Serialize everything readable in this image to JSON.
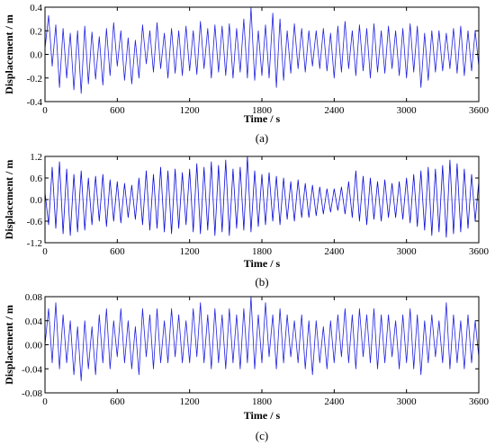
{
  "chart_data": [
    {
      "type": "line",
      "caption": "(a)",
      "xlabel": "Time / s",
      "ylabel": "Displacement / m",
      "xlim": [
        0,
        3600
      ],
      "ylim": [
        -0.4,
        0.4
      ],
      "xticks": [
        0,
        600,
        1200,
        1800,
        2400,
        3000,
        3600
      ],
      "yticks": [
        -0.4,
        -0.2,
        0.0,
        0.2,
        0.4
      ],
      "ytick_labels": [
        "-0.4",
        "-0.2",
        "0.0",
        "0.2",
        "0.4"
      ],
      "color": "#2020e0",
      "series": [
        {
          "x": [
            0,
            30,
            60,
            90,
            120,
            150,
            180,
            210,
            240,
            270,
            300,
            330,
            360,
            390,
            420,
            450,
            480,
            510,
            540,
            570,
            600,
            630,
            660,
            690,
            720,
            750,
            780,
            810,
            840,
            870,
            900,
            930,
            960,
            990,
            1020,
            1050,
            1080,
            1110,
            1140,
            1170,
            1200,
            1230,
            1260,
            1290,
            1320,
            1350,
            1380,
            1410,
            1440,
            1470,
            1500,
            1530,
            1560,
            1590,
            1620,
            1650,
            1680,
            1710,
            1740,
            1770,
            1800,
            1830,
            1860,
            1890,
            1920,
            1950,
            1980,
            2010,
            2040,
            2070,
            2100,
            2130,
            2160,
            2190,
            2220,
            2250,
            2280,
            2310,
            2340,
            2370,
            2400,
            2430,
            2460,
            2490,
            2520,
            2550,
            2580,
            2610,
            2640,
            2670,
            2700,
            2730,
            2760,
            2790,
            2820,
            2850,
            2880,
            2910,
            2940,
            2970,
            3000,
            3030,
            3060,
            3090,
            3120,
            3150,
            3180,
            3210,
            3240,
            3270,
            3300,
            3330,
            3360,
            3390,
            3420,
            3450,
            3480,
            3510,
            3540,
            3570,
            3600
          ],
          "y": [
            0.05,
            0.33,
            -0.1,
            0.25,
            -0.28,
            0.22,
            -0.2,
            0.18,
            -0.3,
            0.2,
            -0.33,
            0.24,
            -0.25,
            0.19,
            -0.21,
            0.15,
            -0.26,
            0.22,
            -0.18,
            0.27,
            -0.1,
            0.2,
            -0.22,
            0.14,
            -0.25,
            0.12,
            -0.2,
            0.25,
            -0.08,
            0.2,
            -0.15,
            0.27,
            -0.12,
            0.18,
            -0.2,
            0.22,
            -0.16,
            0.2,
            -0.18,
            0.24,
            -0.14,
            0.2,
            -0.17,
            0.28,
            -0.12,
            0.22,
            -0.2,
            0.25,
            -0.15,
            0.24,
            -0.18,
            0.26,
            -0.2,
            0.22,
            -0.15,
            0.3,
            -0.2,
            0.4,
            -0.22,
            0.2,
            -0.18,
            0.25,
            -0.2,
            0.35,
            -0.28,
            0.3,
            -0.22,
            0.2,
            -0.16,
            0.26,
            -0.12,
            0.22,
            -0.15,
            0.2,
            -0.1,
            0.2,
            -0.12,
            0.22,
            -0.14,
            0.18,
            -0.2,
            0.24,
            -0.15,
            0.28,
            -0.12,
            0.2,
            -0.18,
            0.25,
            -0.14,
            0.22,
            -0.2,
            0.26,
            -0.15,
            0.2,
            -0.16,
            0.24,
            -0.12,
            0.2,
            -0.18,
            0.22,
            -0.2,
            0.26,
            -0.15,
            0.24,
            -0.28,
            0.18,
            -0.22,
            0.2,
            -0.15,
            0.2,
            -0.14,
            0.18,
            -0.12,
            0.22,
            -0.16,
            0.24,
            -0.18,
            0.2,
            -0.14,
            0.2,
            -0.1
          ]
        }
      ]
    },
    {
      "type": "line",
      "caption": "(b)",
      "xlabel": "Time / s",
      "ylabel": "Displacement / m",
      "xlim": [
        0,
        3600
      ],
      "ylim": [
        -1.2,
        1.2
      ],
      "xticks": [
        0,
        600,
        1200,
        1800,
        2400,
        3000,
        3600
      ],
      "yticks": [
        -1.2,
        -0.6,
        0.0,
        0.6,
        1.2
      ],
      "ytick_labels": [
        "-1.2",
        "-0.6",
        "0.0",
        "0.6",
        "1.2"
      ],
      "color": "#0a0ad8",
      "series": [
        {
          "x": [
            0,
            30,
            60,
            90,
            120,
            150,
            180,
            210,
            240,
            270,
            300,
            330,
            360,
            390,
            420,
            450,
            480,
            510,
            540,
            570,
            600,
            630,
            660,
            690,
            720,
            750,
            780,
            810,
            840,
            870,
            900,
            930,
            960,
            990,
            1020,
            1050,
            1080,
            1110,
            1140,
            1170,
            1200,
            1230,
            1260,
            1290,
            1320,
            1350,
            1380,
            1410,
            1440,
            1470,
            1500,
            1530,
            1560,
            1590,
            1620,
            1650,
            1680,
            1710,
            1740,
            1770,
            1800,
            1830,
            1860,
            1890,
            1920,
            1950,
            1980,
            2010,
            2040,
            2070,
            2100,
            2130,
            2160,
            2190,
            2220,
            2250,
            2280,
            2310,
            2340,
            2370,
            2400,
            2430,
            2460,
            2490,
            2520,
            2550,
            2580,
            2610,
            2640,
            2670,
            2700,
            2730,
            2760,
            2790,
            2820,
            2850,
            2880,
            2910,
            2940,
            2970,
            3000,
            3030,
            3060,
            3090,
            3120,
            3150,
            3180,
            3210,
            3240,
            3270,
            3300,
            3330,
            3360,
            3390,
            3420,
            3450,
            3480,
            3510,
            3540,
            3570,
            3600
          ],
          "y": [
            0.2,
            -0.7,
            0.9,
            -0.8,
            1.05,
            -0.95,
            0.85,
            -1.0,
            0.7,
            -0.9,
            0.8,
            -0.85,
            0.6,
            -0.7,
            0.65,
            -0.6,
            0.7,
            -0.75,
            0.55,
            -0.6,
            0.5,
            -0.65,
            0.45,
            -0.5,
            0.4,
            -0.55,
            0.6,
            -0.7,
            0.8,
            -0.85,
            0.7,
            -0.8,
            0.9,
            -0.9,
            0.8,
            -0.95,
            0.85,
            -0.8,
            0.75,
            -0.7,
            0.85,
            -0.9,
            1.0,
            -0.95,
            0.9,
            -0.85,
            1.05,
            -1.0,
            0.95,
            -0.9,
            1.1,
            -1.0,
            0.85,
            -0.8,
            0.9,
            -0.85,
            1.2,
            -0.9,
            0.8,
            -0.75,
            0.7,
            -0.7,
            0.75,
            -0.6,
            0.65,
            -0.7,
            0.6,
            -0.55,
            0.5,
            -0.6,
            0.55,
            -0.5,
            0.45,
            -0.5,
            0.4,
            -0.45,
            0.35,
            -0.4,
            0.3,
            -0.35,
            0.3,
            -0.3,
            0.35,
            -0.4,
            0.5,
            -0.5,
            0.8,
            -0.6,
            0.65,
            -0.7,
            0.6,
            -0.55,
            0.5,
            -0.6,
            0.55,
            -0.5,
            0.45,
            -0.5,
            0.5,
            -0.55,
            0.6,
            -0.65,
            0.7,
            -0.75,
            0.8,
            -0.85,
            0.9,
            -1.0,
            0.85,
            -0.9,
            0.95,
            -1.05,
            1.1,
            -0.95,
            1.0,
            -0.9,
            0.85,
            -0.8,
            0.7,
            -0.6,
            0.5
          ]
        }
      ]
    },
    {
      "type": "line",
      "caption": "(c)",
      "xlabel": "Time / s",
      "ylabel": "Displacement / m",
      "xlim": [
        0,
        3600
      ],
      "ylim": [
        -0.08,
        0.08
      ],
      "xticks": [
        0,
        600,
        1200,
        1800,
        2400,
        3000,
        3600
      ],
      "yticks": [
        -0.08,
        -0.04,
        0.0,
        0.04,
        0.08
      ],
      "ytick_labels": [
        "-0.08",
        "-0.04",
        "0.00",
        "0.04",
        "0.08"
      ],
      "color": "#2020e0",
      "series": [
        {
          "x": [
            0,
            30,
            60,
            90,
            120,
            150,
            180,
            210,
            240,
            270,
            300,
            330,
            360,
            390,
            420,
            450,
            480,
            510,
            540,
            570,
            600,
            630,
            660,
            690,
            720,
            750,
            780,
            810,
            840,
            870,
            900,
            930,
            960,
            990,
            1020,
            1050,
            1080,
            1110,
            1140,
            1170,
            1200,
            1230,
            1260,
            1290,
            1320,
            1350,
            1380,
            1410,
            1440,
            1470,
            1500,
            1530,
            1560,
            1590,
            1620,
            1650,
            1680,
            1710,
            1740,
            1770,
            1800,
            1830,
            1860,
            1890,
            1920,
            1950,
            1980,
            2010,
            2040,
            2070,
            2100,
            2130,
            2160,
            2190,
            2220,
            2250,
            2280,
            2310,
            2340,
            2370,
            2400,
            2430,
            2460,
            2490,
            2520,
            2550,
            2580,
            2610,
            2640,
            2670,
            2700,
            2730,
            2760,
            2790,
            2820,
            2850,
            2880,
            2910,
            2940,
            2970,
            3000,
            3030,
            3060,
            3090,
            3120,
            3150,
            3180,
            3210,
            3240,
            3270,
            3300,
            3330,
            3360,
            3390,
            3420,
            3450,
            3480,
            3510,
            3540,
            3570,
            3600
          ],
          "y": [
            0.0,
            0.06,
            -0.03,
            0.07,
            -0.04,
            0.05,
            -0.03,
            0.04,
            -0.05,
            0.03,
            -0.06,
            0.04,
            -0.04,
            0.03,
            -0.05,
            0.05,
            -0.03,
            0.06,
            -0.04,
            0.04,
            -0.02,
            0.06,
            -0.03,
            0.04,
            -0.04,
            0.03,
            -0.05,
            0.06,
            -0.02,
            0.05,
            -0.04,
            0.06,
            -0.03,
            0.04,
            -0.03,
            0.06,
            -0.02,
            0.05,
            -0.03,
            0.04,
            -0.03,
            0.06,
            -0.02,
            0.07,
            -0.03,
            0.05,
            -0.04,
            0.06,
            -0.03,
            0.05,
            -0.04,
            0.06,
            -0.03,
            0.05,
            -0.04,
            0.06,
            -0.03,
            0.08,
            -0.04,
            0.05,
            -0.03,
            0.07,
            -0.02,
            0.05,
            -0.04,
            0.06,
            -0.03,
            0.05,
            -0.02,
            0.04,
            -0.03,
            0.05,
            -0.04,
            0.04,
            -0.05,
            0.04,
            -0.03,
            0.03,
            -0.04,
            0.04,
            -0.03,
            0.05,
            -0.02,
            0.06,
            -0.03,
            0.05,
            -0.04,
            0.06,
            -0.02,
            0.05,
            -0.03,
            0.06,
            -0.04,
            0.05,
            -0.03,
            0.05,
            -0.02,
            0.04,
            -0.04,
            0.05,
            -0.03,
            0.06,
            -0.04,
            0.05,
            -0.05,
            0.04,
            -0.03,
            0.05,
            -0.02,
            0.04,
            -0.03,
            0.07,
            -0.04,
            0.05,
            -0.03,
            0.04,
            -0.04,
            0.05,
            -0.03,
            0.04,
            -0.02
          ]
        }
      ]
    }
  ]
}
